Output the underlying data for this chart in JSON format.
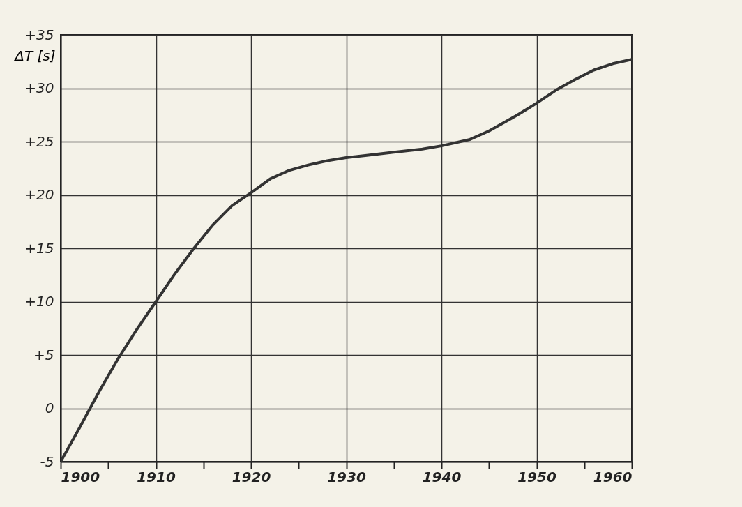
{
  "chart_data": {
    "type": "line",
    "ylabel": "ΔT [s]",
    "x": [
      1900,
      1902,
      1904,
      1906,
      1908,
      1910,
      1912,
      1914,
      1916,
      1918,
      1920,
      1922,
      1924,
      1926,
      1928,
      1930,
      1932,
      1935,
      1938,
      1940,
      1943,
      1945,
      1948,
      1950,
      1952,
      1954,
      1956,
      1958,
      1960
    ],
    "series": [
      {
        "color": "#333333",
        "values": [
          -5,
          -1.8,
          1.5,
          4.6,
          7.4,
          10.0,
          12.6,
          15.0,
          17.2,
          19.0,
          20.2,
          21.5,
          22.3,
          22.8,
          23.2,
          23.5,
          23.7,
          24.0,
          24.3,
          24.6,
          25.2,
          26.0,
          27.5,
          28.6,
          29.8,
          30.8,
          31.7,
          32.3,
          32.7
        ]
      }
    ],
    "xlim": [
      1900,
      1960
    ],
    "xticks": [
      1900,
      {
        "value": 1905,
        "label": null
      },
      1910,
      {
        "value": 1915,
        "label": null
      },
      1920,
      {
        "value": 1925,
        "label": null
      },
      1930,
      {
        "value": 1935,
        "label": null
      },
      1940,
      {
        "value": 1945,
        "label": null
      },
      1950,
      {
        "value": 1955,
        "label": null
      },
      1960
    ],
    "ylim": [
      -5,
      35
    ],
    "yticks": [
      {
        "value": -5,
        "label": "-5"
      },
      0,
      {
        "value": 5,
        "label": "+5"
      },
      {
        "value": 10,
        "label": "+10"
      },
      {
        "value": 15,
        "label": "+15"
      },
      {
        "value": 20,
        "label": "+20"
      },
      {
        "value": 25,
        "label": "+25"
      },
      {
        "value": 30,
        "label": "+30"
      },
      {
        "value": 35,
        "label": "+35"
      }
    ],
    "grid": true,
    "line_style": "solid",
    "marker": "none"
  }
}
